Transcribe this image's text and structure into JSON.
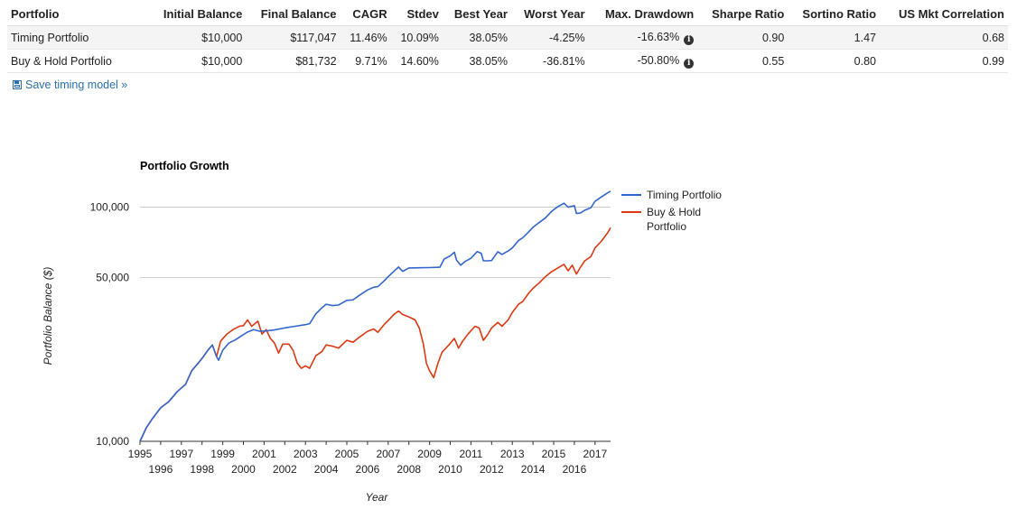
{
  "table": {
    "headers": [
      "Portfolio",
      "Initial Balance",
      "Final Balance",
      "CAGR",
      "Stdev",
      "Best Year",
      "Worst Year",
      "Max. Drawdown",
      "Sharpe Ratio",
      "Sortino Ratio",
      "US Mkt Correlation"
    ],
    "rows": [
      [
        "Timing Portfolio",
        "$10,000",
        "$117,047",
        "11.46%",
        "10.09%",
        "38.05%",
        "-4.25%",
        "-16.63%",
        "0.90",
        "1.47",
        "0.68"
      ],
      [
        "Buy & Hold Portfolio",
        "$10,000",
        "$81,732",
        "9.71%",
        "14.60%",
        "38.05%",
        "-36.81%",
        "-50.80%",
        "0.55",
        "0.80",
        "0.99"
      ]
    ]
  },
  "save_link": {
    "label": "Save timing model »",
    "icon": "save-icon"
  },
  "chart_data": {
    "type": "line",
    "title": "Portfolio Growth",
    "xlabel": "Year",
    "ylabel": "Portfolio Balance ($)",
    "yscale": "log",
    "ylim": [
      10000,
      130000
    ],
    "xlim": [
      1995,
      2017.75
    ],
    "x_ticks": [
      "1995",
      "1996",
      "1997",
      "1998",
      "1999",
      "2000",
      "2001",
      "2002",
      "2003",
      "2004",
      "2005",
      "2006",
      "2007",
      "2008",
      "2009",
      "2010",
      "2011",
      "2012",
      "2013",
      "2014",
      "2015",
      "2016",
      "2017"
    ],
    "y_ticks": [
      {
        "value": 10000,
        "label": "10,000"
      },
      {
        "value": 50000,
        "label": "50,000"
      },
      {
        "value": 100000,
        "label": "100,000"
      }
    ],
    "grid": true,
    "legend_position": "right",
    "series": [
      {
        "name": "Timing Portfolio",
        "color": "#3366cc",
        "points": [
          [
            1995.0,
            10000
          ],
          [
            1995.3,
            11400
          ],
          [
            1995.6,
            12500
          ],
          [
            1996.0,
            13900
          ],
          [
            1996.4,
            14800
          ],
          [
            1996.8,
            16300
          ],
          [
            1997.2,
            17500
          ],
          [
            1997.5,
            20000
          ],
          [
            1997.8,
            21500
          ],
          [
            1998.0,
            22600
          ],
          [
            1998.3,
            24600
          ],
          [
            1998.5,
            25800
          ],
          [
            1998.7,
            23000
          ],
          [
            1998.8,
            22200
          ],
          [
            1999.0,
            24500
          ],
          [
            1999.3,
            26300
          ],
          [
            1999.6,
            27100
          ],
          [
            1999.9,
            28200
          ],
          [
            2000.2,
            29300
          ],
          [
            2000.5,
            30000
          ],
          [
            2000.8,
            29500
          ],
          [
            2001.1,
            29600
          ],
          [
            2001.5,
            29900
          ],
          [
            2002.0,
            30500
          ],
          [
            2002.5,
            31000
          ],
          [
            2003.0,
            31500
          ],
          [
            2003.2,
            31800
          ],
          [
            2003.5,
            35000
          ],
          [
            2003.8,
            37200
          ],
          [
            2004.0,
            38500
          ],
          [
            2004.3,
            38000
          ],
          [
            2004.6,
            38200
          ],
          [
            2005.0,
            40000
          ],
          [
            2005.3,
            40200
          ],
          [
            2005.6,
            42000
          ],
          [
            2006.0,
            44300
          ],
          [
            2006.3,
            45500
          ],
          [
            2006.5,
            45800
          ],
          [
            2006.8,
            48400
          ],
          [
            2007.0,
            50500
          ],
          [
            2007.3,
            53500
          ],
          [
            2007.5,
            55500
          ],
          [
            2007.7,
            53200
          ],
          [
            2008.0,
            55000
          ],
          [
            2008.5,
            55100
          ],
          [
            2009.0,
            55200
          ],
          [
            2009.5,
            55400
          ],
          [
            2009.7,
            60000
          ],
          [
            2010.0,
            62000
          ],
          [
            2010.2,
            64200
          ],
          [
            2010.3,
            59500
          ],
          [
            2010.5,
            56500
          ],
          [
            2010.7,
            58500
          ],
          [
            2011.0,
            60500
          ],
          [
            2011.3,
            64600
          ],
          [
            2011.5,
            63500
          ],
          [
            2011.6,
            59000
          ],
          [
            2011.8,
            59000
          ],
          [
            2012.0,
            59200
          ],
          [
            2012.3,
            64500
          ],
          [
            2012.5,
            62800
          ],
          [
            2012.8,
            65000
          ],
          [
            2013.0,
            67000
          ],
          [
            2013.3,
            72000
          ],
          [
            2013.5,
            74000
          ],
          [
            2013.7,
            77000
          ],
          [
            2014.0,
            82000
          ],
          [
            2014.3,
            86000
          ],
          [
            2014.6,
            90000
          ],
          [
            2014.9,
            96000
          ],
          [
            2015.2,
            100500
          ],
          [
            2015.5,
            104000
          ],
          [
            2015.7,
            100000
          ],
          [
            2016.0,
            101500
          ],
          [
            2016.1,
            94000
          ],
          [
            2016.3,
            94500
          ],
          [
            2016.5,
            97000
          ],
          [
            2016.8,
            99500
          ],
          [
            2017.0,
            106000
          ],
          [
            2017.3,
            110500
          ],
          [
            2017.6,
            115000
          ],
          [
            2017.75,
            117047
          ]
        ]
      },
      {
        "name": "Buy & Hold Portfolio",
        "color": "#dc3912",
        "points": [
          [
            1995.0,
            10000
          ],
          [
            1995.3,
            11400
          ],
          [
            1995.6,
            12500
          ],
          [
            1996.0,
            13900
          ],
          [
            1996.4,
            14800
          ],
          [
            1996.8,
            16300
          ],
          [
            1997.2,
            17500
          ],
          [
            1997.5,
            20000
          ],
          [
            1997.8,
            21500
          ],
          [
            1998.0,
            22600
          ],
          [
            1998.3,
            24600
          ],
          [
            1998.5,
            25800
          ],
          [
            1998.7,
            23000
          ],
          [
            1998.9,
            26800
          ],
          [
            1999.2,
            28700
          ],
          [
            1999.5,
            30000
          ],
          [
            1999.8,
            31000
          ],
          [
            2000.0,
            31200
          ],
          [
            2000.2,
            33000
          ],
          [
            2000.4,
            31000
          ],
          [
            2000.7,
            32600
          ],
          [
            2000.9,
            28700
          ],
          [
            2001.1,
            30000
          ],
          [
            2001.3,
            27500
          ],
          [
            2001.5,
            26300
          ],
          [
            2001.7,
            23800
          ],
          [
            2001.9,
            26000
          ],
          [
            2002.2,
            26000
          ],
          [
            2002.4,
            24500
          ],
          [
            2002.6,
            21600
          ],
          [
            2002.8,
            20500
          ],
          [
            2003.0,
            21000
          ],
          [
            2003.2,
            20500
          ],
          [
            2003.5,
            23200
          ],
          [
            2003.8,
            24200
          ],
          [
            2004.0,
            25800
          ],
          [
            2004.3,
            25500
          ],
          [
            2004.6,
            25000
          ],
          [
            2005.0,
            27000
          ],
          [
            2005.3,
            26500
          ],
          [
            2005.6,
            27800
          ],
          [
            2006.0,
            29500
          ],
          [
            2006.3,
            30200
          ],
          [
            2006.5,
            29200
          ],
          [
            2006.8,
            31500
          ],
          [
            2007.0,
            32800
          ],
          [
            2007.3,
            35000
          ],
          [
            2007.5,
            36000
          ],
          [
            2007.7,
            34800
          ],
          [
            2008.0,
            34000
          ],
          [
            2008.3,
            33000
          ],
          [
            2008.5,
            30500
          ],
          [
            2008.7,
            26000
          ],
          [
            2008.85,
            21500
          ],
          [
            2009.0,
            20000
          ],
          [
            2009.2,
            18700
          ],
          [
            2009.4,
            21500
          ],
          [
            2009.6,
            24000
          ],
          [
            2009.9,
            25600
          ],
          [
            2010.2,
            27500
          ],
          [
            2010.4,
            25000
          ],
          [
            2010.6,
            26800
          ],
          [
            2010.9,
            29000
          ],
          [
            2011.2,
            31000
          ],
          [
            2011.4,
            30500
          ],
          [
            2011.6,
            27000
          ],
          [
            2011.8,
            28500
          ],
          [
            2012.0,
            30500
          ],
          [
            2012.3,
            32200
          ],
          [
            2012.5,
            31000
          ],
          [
            2012.8,
            33000
          ],
          [
            2013.0,
            35500
          ],
          [
            2013.3,
            38500
          ],
          [
            2013.5,
            39500
          ],
          [
            2013.8,
            43000
          ],
          [
            2014.0,
            45000
          ],
          [
            2014.3,
            47500
          ],
          [
            2014.6,
            50500
          ],
          [
            2014.9,
            53000
          ],
          [
            2015.2,
            55000
          ],
          [
            2015.5,
            57000
          ],
          [
            2015.7,
            53500
          ],
          [
            2015.9,
            56500
          ],
          [
            2016.1,
            51800
          ],
          [
            2016.3,
            55500
          ],
          [
            2016.5,
            59000
          ],
          [
            2016.8,
            61500
          ],
          [
            2017.0,
            67000
          ],
          [
            2017.3,
            71500
          ],
          [
            2017.6,
            77500
          ],
          [
            2017.75,
            81732
          ]
        ]
      }
    ],
    "legend": [
      "Timing Portfolio",
      "Buy & Hold Portfolio"
    ]
  }
}
